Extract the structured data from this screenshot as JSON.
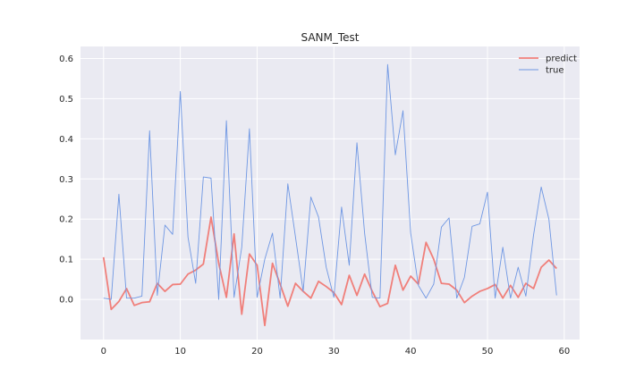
{
  "chart_data": {
    "type": "line",
    "title": "SANM_Test",
    "xlabel": "",
    "ylabel": "",
    "xlim": [
      -3,
      62
    ],
    "ylim": [
      -0.1,
      0.63
    ],
    "x_ticks": [
      0,
      10,
      20,
      30,
      40,
      50,
      60
    ],
    "y_ticks": [
      0.0,
      0.1,
      0.2,
      0.3,
      0.4,
      0.5,
      0.6
    ],
    "grid": true,
    "legend": "top-right",
    "series": [
      {
        "name": "predict",
        "color": "#f07f7a",
        "x": [
          0,
          1,
          2,
          3,
          4,
          5,
          6,
          7,
          8,
          9,
          10,
          11,
          12,
          13,
          14,
          15,
          16,
          17,
          18,
          19,
          20,
          21,
          22,
          23,
          24,
          25,
          26,
          27,
          28,
          29,
          30,
          31,
          32,
          33,
          34,
          35,
          36,
          37,
          38,
          39,
          40,
          41,
          42,
          43,
          44,
          45,
          46,
          47,
          48,
          49,
          50,
          51,
          52,
          53,
          54,
          55,
          56,
          57,
          58,
          59
        ],
        "values": [
          0.105,
          -0.025,
          -0.005,
          0.027,
          -0.015,
          -0.008,
          -0.006,
          0.04,
          0.02,
          0.037,
          0.038,
          0.063,
          0.073,
          0.088,
          0.205,
          0.09,
          0.005,
          0.163,
          -0.037,
          0.113,
          0.085,
          -0.065,
          0.09,
          0.038,
          -0.017,
          0.04,
          0.02,
          0.003,
          0.045,
          0.032,
          0.017,
          -0.013,
          0.06,
          0.01,
          0.063,
          0.02,
          -0.018,
          -0.01,
          0.085,
          0.023,
          0.058,
          0.038,
          0.142,
          0.1,
          0.04,
          0.038,
          0.023,
          -0.008,
          0.008,
          0.02,
          0.027,
          0.037,
          0.003,
          0.035,
          0.005,
          0.04,
          0.027,
          0.08,
          0.098,
          0.077
        ]
      },
      {
        "name": "true",
        "color": "#6f97e3",
        "x": [
          0,
          1,
          2,
          3,
          4,
          5,
          6,
          7,
          8,
          9,
          10,
          11,
          12,
          13,
          14,
          15,
          16,
          17,
          18,
          19,
          20,
          21,
          22,
          23,
          24,
          25,
          26,
          27,
          28,
          29,
          30,
          31,
          32,
          33,
          34,
          35,
          36,
          37,
          38,
          39,
          40,
          41,
          42,
          43,
          44,
          45,
          46,
          47,
          48,
          49,
          50,
          51,
          52,
          53,
          54,
          55,
          56,
          57,
          58,
          59
        ],
        "values": [
          0.003,
          0.0,
          0.262,
          0.003,
          0.003,
          0.008,
          0.42,
          0.01,
          0.185,
          0.162,
          0.518,
          0.155,
          0.04,
          0.305,
          0.302,
          0.0,
          0.445,
          0.005,
          0.13,
          0.425,
          0.005,
          0.1,
          0.165,
          0.003,
          0.288,
          0.155,
          0.02,
          0.255,
          0.205,
          0.08,
          0.005,
          0.23,
          0.085,
          0.39,
          0.165,
          0.005,
          0.003,
          0.585,
          0.36,
          0.47,
          0.165,
          0.035,
          0.003,
          0.038,
          0.18,
          0.203,
          0.003,
          0.055,
          0.182,
          0.188,
          0.267,
          0.003,
          0.13,
          0.003,
          0.08,
          0.008,
          0.16,
          0.28,
          0.2,
          0.01
        ]
      }
    ]
  }
}
